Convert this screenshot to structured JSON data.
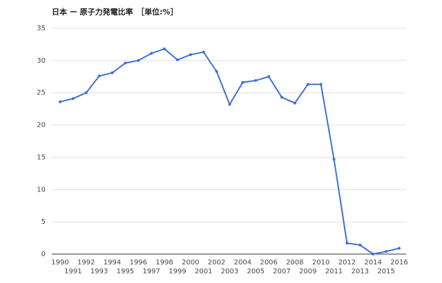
{
  "chart_data": {
    "type": "line",
    "title": "日本 ー 原子力発電比率　［単位:%］",
    "x": [
      1990,
      1991,
      1992,
      1993,
      1994,
      1995,
      1996,
      1997,
      1998,
      1999,
      2000,
      2001,
      2002,
      2003,
      2004,
      2005,
      2006,
      2007,
      2008,
      2009,
      2010,
      2011,
      2012,
      2013,
      2014,
      2015,
      2016
    ],
    "series": [
      {
        "name": "原子力発電比率",
        "color": "#3f6fd4",
        "values": [
          23.6,
          24.1,
          25.0,
          27.6,
          28.1,
          29.6,
          30.0,
          31.1,
          31.8,
          30.1,
          30.9,
          31.3,
          28.3,
          23.2,
          26.6,
          26.9,
          27.5,
          24.3,
          23.4,
          26.3,
          26.3,
          14.7,
          1.7,
          1.4,
          0,
          0.4,
          0.9
        ]
      }
    ],
    "xlim": [
      1990,
      2016
    ],
    "xticks": [
      1990,
      1991,
      1992,
      1993,
      1994,
      1995,
      1996,
      1997,
      1998,
      1999,
      2000,
      2001,
      2002,
      2003,
      2004,
      2005,
      2006,
      2007,
      2008,
      2009,
      2010,
      2011,
      2012,
      2013,
      2014,
      2015,
      2016
    ],
    "ylim": [
      0,
      35
    ],
    "yticks": [
      0,
      5,
      10,
      15,
      20,
      25,
      30,
      35
    ],
    "grid": true
  }
}
